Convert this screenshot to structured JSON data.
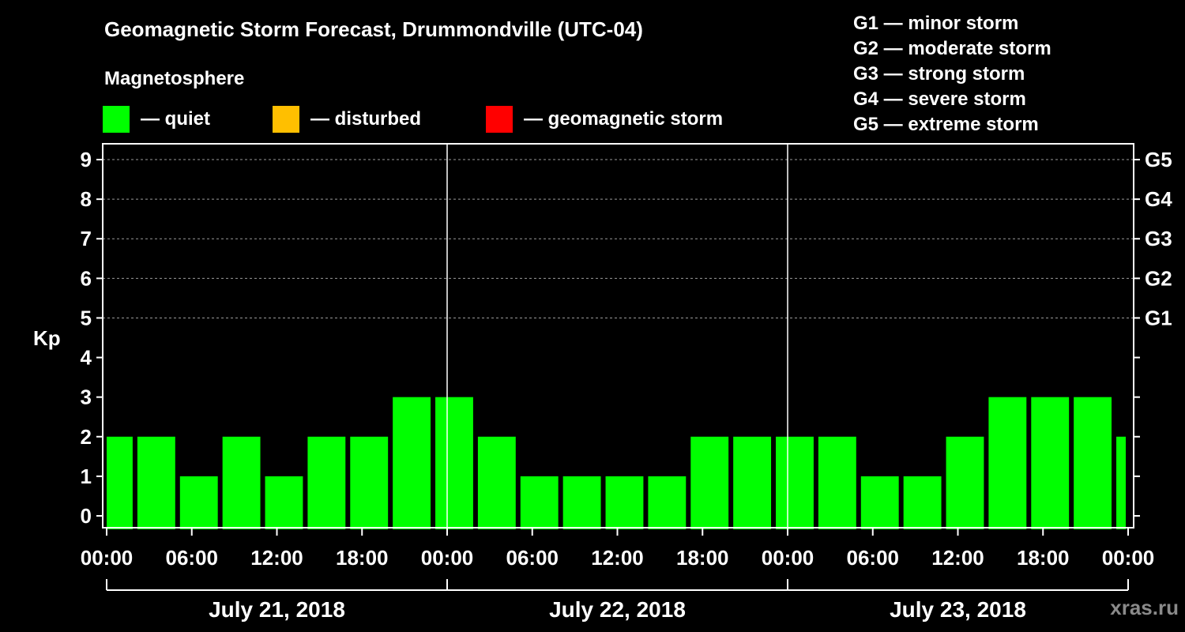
{
  "title": "Geomagnetic Storm Forecast, Drummondville (UTC-04)",
  "subtitle": "Magnetosphere",
  "legend": [
    {
      "label": "— quiet",
      "color": "#00ff00"
    },
    {
      "label": "— disturbed",
      "color": "#ffbf00"
    },
    {
      "label": "— geomagnetic storm",
      "color": "#ff0000"
    }
  ],
  "g_scale_legend": [
    "G1 — minor storm",
    "G2 — moderate storm",
    "G3 — strong storm",
    "G4 — severe storm",
    "G5 — extreme storm"
  ],
  "watermark": "xras.ru",
  "chart_data": {
    "type": "bar",
    "ylabel": "Kp",
    "ylim": [
      -0.3,
      9.4
    ],
    "yticks": [
      0,
      1,
      2,
      3,
      4,
      5,
      6,
      7,
      8,
      9
    ],
    "right_labels": [
      {
        "value": 5,
        "label": "G1"
      },
      {
        "value": 6,
        "label": "G2"
      },
      {
        "value": 7,
        "label": "G3"
      },
      {
        "value": 8,
        "label": "G4"
      },
      {
        "value": 9,
        "label": "G5"
      }
    ],
    "x_tick_labels": [
      "00:00",
      "06:00",
      "12:00",
      "18:00",
      "00:00",
      "06:00",
      "12:00",
      "18:00",
      "00:00",
      "06:00",
      "12:00",
      "18:00",
      "00:00"
    ],
    "x_tick_hours": [
      0,
      6,
      12,
      18,
      24,
      30,
      36,
      42,
      48,
      54,
      60,
      66,
      72
    ],
    "day_labels": [
      "July 21, 2018",
      "July 22, 2018",
      "July 23, 2018"
    ],
    "x_range_hours": [
      0,
      72
    ],
    "grid": "dashed horizontal at 5–9",
    "bars": [
      {
        "start_hour": 0,
        "end_hour": 2,
        "kp": 2
      },
      {
        "start_hour": 2,
        "end_hour": 5,
        "kp": 2
      },
      {
        "start_hour": 5,
        "end_hour": 8,
        "kp": 1
      },
      {
        "start_hour": 8,
        "end_hour": 11,
        "kp": 2
      },
      {
        "start_hour": 11,
        "end_hour": 14,
        "kp": 1
      },
      {
        "start_hour": 14,
        "end_hour": 17,
        "kp": 2
      },
      {
        "start_hour": 17,
        "end_hour": 20,
        "kp": 2
      },
      {
        "start_hour": 20,
        "end_hour": 23,
        "kp": 3
      },
      {
        "start_hour": 23,
        "end_hour": 26,
        "kp": 3
      },
      {
        "start_hour": 26,
        "end_hour": 29,
        "kp": 2
      },
      {
        "start_hour": 29,
        "end_hour": 32,
        "kp": 1
      },
      {
        "start_hour": 32,
        "end_hour": 35,
        "kp": 1
      },
      {
        "start_hour": 35,
        "end_hour": 38,
        "kp": 1
      },
      {
        "start_hour": 38,
        "end_hour": 41,
        "kp": 1
      },
      {
        "start_hour": 41,
        "end_hour": 44,
        "kp": 2
      },
      {
        "start_hour": 44,
        "end_hour": 47,
        "kp": 2
      },
      {
        "start_hour": 47,
        "end_hour": 50,
        "kp": 2
      },
      {
        "start_hour": 50,
        "end_hour": 53,
        "kp": 2
      },
      {
        "start_hour": 53,
        "end_hour": 56,
        "kp": 1
      },
      {
        "start_hour": 56,
        "end_hour": 59,
        "kp": 1
      },
      {
        "start_hour": 59,
        "end_hour": 62,
        "kp": 2
      },
      {
        "start_hour": 62,
        "end_hour": 65,
        "kp": 3
      },
      {
        "start_hour": 65,
        "end_hour": 68,
        "kp": 3
      },
      {
        "start_hour": 68,
        "end_hour": 71,
        "kp": 3
      },
      {
        "start_hour": 71,
        "end_hour": 72,
        "kp": 2
      }
    ],
    "bar_color": "#00ff00"
  }
}
